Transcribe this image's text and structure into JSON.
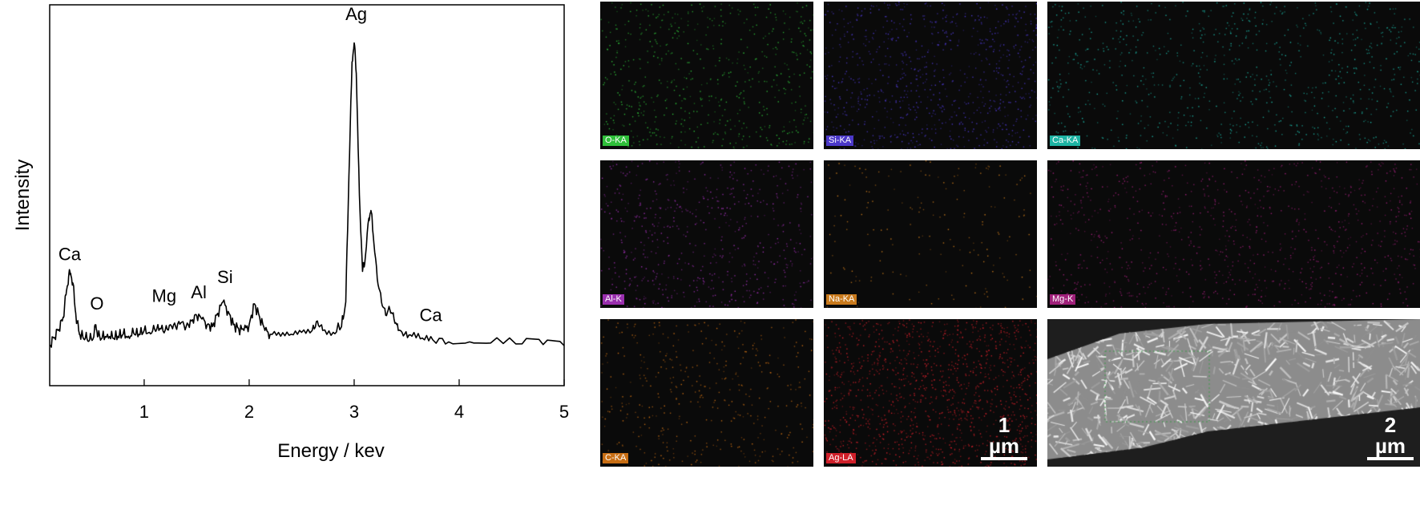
{
  "chart_data": {
    "type": "line",
    "xlabel": "Energy / kev",
    "ylabel": "Intensity",
    "xlim": [
      0.1,
      5.0
    ],
    "ylim": [
      0,
      100
    ],
    "xticks": [
      1,
      2,
      3,
      4,
      5
    ],
    "series": [
      {
        "values": [
          [
            0.1,
            10.5
          ],
          [
            0.14,
            12.5
          ],
          [
            0.18,
            14.5
          ],
          [
            0.22,
            17.0
          ],
          [
            0.24,
            20.0
          ],
          [
            0.26,
            25.0
          ],
          [
            0.28,
            28.5
          ],
          [
            0.3,
            29.5
          ],
          [
            0.32,
            27.0
          ],
          [
            0.34,
            21.0
          ],
          [
            0.36,
            16.5
          ],
          [
            0.38,
            14.0
          ],
          [
            0.4,
            13.0
          ],
          [
            0.44,
            12.5
          ],
          [
            0.48,
            12.0
          ],
          [
            0.52,
            12.8
          ],
          [
            0.54,
            16.0
          ],
          [
            0.56,
            13.0
          ],
          [
            0.6,
            12.5
          ],
          [
            0.65,
            13.5
          ],
          [
            0.7,
            12.5
          ],
          [
            0.75,
            13.0
          ],
          [
            0.8,
            13.5
          ],
          [
            0.85,
            13.0
          ],
          [
            0.9,
            13.8
          ],
          [
            0.95,
            13.5
          ],
          [
            1.0,
            14.5
          ],
          [
            1.05,
            14.0
          ],
          [
            1.1,
            14.8
          ],
          [
            1.15,
            15.0
          ],
          [
            1.2,
            14.5
          ],
          [
            1.25,
            16.0
          ],
          [
            1.3,
            15.5
          ],
          [
            1.35,
            16.5
          ],
          [
            1.4,
            15.5
          ],
          [
            1.45,
            17.0
          ],
          [
            1.5,
            18.5
          ],
          [
            1.55,
            17.5
          ],
          [
            1.6,
            16.0
          ],
          [
            1.65,
            15.5
          ],
          [
            1.7,
            19.0
          ],
          [
            1.75,
            22.0
          ],
          [
            1.8,
            19.5
          ],
          [
            1.85,
            16.0
          ],
          [
            1.9,
            15.0
          ],
          [
            1.95,
            14.5
          ],
          [
            2.0,
            16.0
          ],
          [
            2.05,
            21.5
          ],
          [
            2.1,
            18.0
          ],
          [
            2.15,
            14.5
          ],
          [
            2.2,
            13.5
          ],
          [
            2.3,
            13.0
          ],
          [
            2.4,
            13.5
          ],
          [
            2.5,
            14.0
          ],
          [
            2.6,
            14.5
          ],
          [
            2.65,
            17.0
          ],
          [
            2.7,
            14.5
          ],
          [
            2.8,
            14.0
          ],
          [
            2.88,
            15.5
          ],
          [
            2.92,
            22.0
          ],
          [
            2.95,
            55.0
          ],
          [
            2.98,
            85.0
          ],
          [
            3.0,
            90.0
          ],
          [
            3.02,
            82.0
          ],
          [
            3.05,
            50.0
          ],
          [
            3.08,
            30.0
          ],
          [
            3.1,
            32.0
          ],
          [
            3.14,
            44.0
          ],
          [
            3.16,
            46.0
          ],
          [
            3.18,
            40.0
          ],
          [
            3.22,
            28.0
          ],
          [
            3.26,
            22.0
          ],
          [
            3.3,
            18.5
          ],
          [
            3.34,
            20.0
          ],
          [
            3.38,
            17.5
          ],
          [
            3.42,
            14.5
          ],
          [
            3.48,
            13.5
          ],
          [
            3.55,
            13.0
          ],
          [
            3.65,
            12.5
          ],
          [
            3.75,
            12.0
          ],
          [
            3.9,
            11.5
          ],
          [
            4.1,
            11.5
          ],
          [
            4.3,
            11.2
          ],
          [
            4.6,
            11.0
          ],
          [
            4.8,
            10.8
          ],
          [
            5.0,
            10.5
          ]
        ]
      }
    ],
    "annotations": [
      {
        "text": "Ca",
        "x": 0.29,
        "y": 33
      },
      {
        "text": "O",
        "x": 0.55,
        "y": 20
      },
      {
        "text": "Mg",
        "x": 1.19,
        "y": 22
      },
      {
        "text": "Al",
        "x": 1.52,
        "y": 23
      },
      {
        "text": "Si",
        "x": 1.77,
        "y": 27
      },
      {
        "text": "Ag",
        "x": 3.02,
        "y": 96
      },
      {
        "text": "Ca",
        "x": 3.73,
        "y": 17
      }
    ]
  },
  "element_maps": [
    {
      "label": "O-KA",
      "color": "#2fbf3a",
      "density": 0.1
    },
    {
      "label": "Si-KA",
      "color": "#4b38c9",
      "density": 0.14
    },
    {
      "label": "Ca-KA",
      "color": "#1db3a3",
      "density": 0.08
    },
    {
      "label": "Al-K",
      "color": "#9a2fae",
      "density": 0.1
    },
    {
      "label": "Na-KA",
      "color": "#c97a1c",
      "density": 0.03
    },
    {
      "label": "Mg-K",
      "color": "#a0207a",
      "density": 0.09
    },
    {
      "label": "C-KA",
      "color": "#c86e14",
      "density": 0.07
    },
    {
      "label": "Ag-LA",
      "color": "#d0202a",
      "density": 0.22,
      "scale": "1 µm"
    },
    {
      "label": "",
      "sem": true,
      "scale": "2 µm"
    }
  ]
}
